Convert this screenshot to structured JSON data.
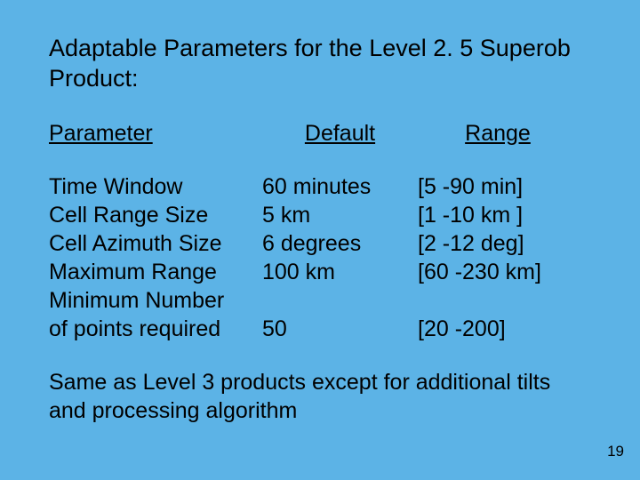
{
  "slide": {
    "title": "Adaptable Parameters for the Level 2. 5 Superob Product:",
    "headers": {
      "param": "Parameter",
      "default": "Default",
      "range": "Range"
    },
    "rows": [
      {
        "param": "Time Window",
        "default": "60 minutes",
        "range": "[5 -90 min]"
      },
      {
        "param": "Cell Range Size",
        "default": "5 km",
        "range": "[1 -10 km ]"
      },
      {
        "param": "Cell Azimuth Size",
        "default": " 6 degrees",
        "range": "[2 -12 deg]"
      },
      {
        "param": "Maximum Range",
        "default": "100 km",
        "range": "[60 -230 km]"
      },
      {
        "param": "Minimum Number",
        "default": "",
        "range": ""
      },
      {
        "param": "of  points required",
        "default": "50",
        "range": "[20 -200]"
      }
    ],
    "footer": "Same as Level 3 products except for additional tilts and processing algorithm",
    "pagenum": "19"
  },
  "style": {
    "background_color": "#5cb3e6",
    "text_color": "#000000",
    "title_fontsize": 27,
    "body_fontsize": 25,
    "pagenum_fontsize": 17
  }
}
